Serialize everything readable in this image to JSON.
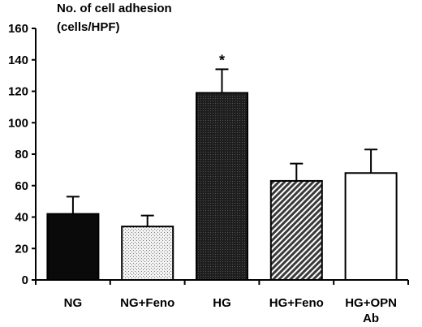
{
  "chart_data": {
    "type": "bar",
    "ylabel": [
      "No. of cell adhesion",
      "(cells/HPF)"
    ],
    "xlabel": "",
    "ylim": [
      0,
      160
    ],
    "yticks": [
      0,
      20,
      40,
      60,
      80,
      100,
      120,
      140,
      160
    ],
    "categories": [
      "NG",
      "NG+Feno",
      "HG",
      "HG+Feno",
      [
        "HG+OPN",
        "Ab"
      ]
    ],
    "values": [
      42,
      34,
      119,
      63,
      68
    ],
    "error_upper": [
      53,
      41,
      134,
      74,
      83
    ],
    "bar_fills": [
      "solid-black",
      "dotted-light",
      "dense-dark-crosshatch",
      "diagonal-hatch",
      "white"
    ],
    "annotations": [
      {
        "category_index": 2,
        "text": "*"
      }
    ],
    "grid": false,
    "legend": "none"
  }
}
